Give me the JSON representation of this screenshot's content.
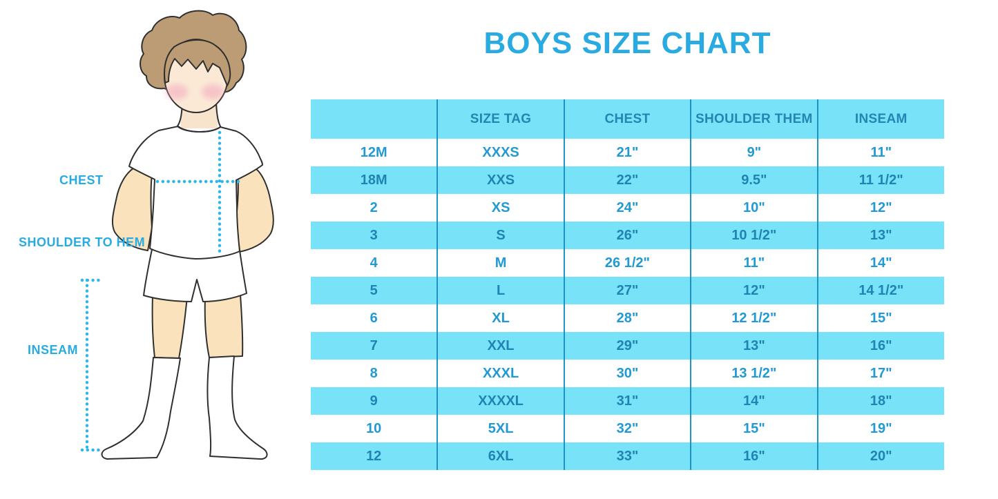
{
  "title": "BOYS SIZE CHART",
  "figure": {
    "labels": {
      "chest": "CHEST",
      "shoulder_to_hem": "SHOULDER TO HEM",
      "inseam": "INSEAM"
    }
  },
  "colors": {
    "title_blue": "#29ABE2",
    "header_bg": "#78E2F8",
    "alt_row_bg": "#78E2F8",
    "grid_line": "#1E94C6",
    "text_on_white": "#2199D3",
    "text_on_blue": "#1F84B2",
    "dotted_line": "#2EB6EC",
    "hair": "#BC9C74",
    "skin": "#FAE3BC"
  },
  "chart_data": {
    "type": "table",
    "title": "BOYS SIZE CHART",
    "columns": [
      "",
      "SIZE TAG",
      "CHEST",
      "SHOULDER THEM",
      "INSEAM"
    ],
    "rows": [
      [
        "12M",
        "XXXS",
        "21\"",
        "9\"",
        "11\""
      ],
      [
        "18M",
        "XXS",
        "22\"",
        "9.5\"",
        "11 1/2\""
      ],
      [
        "2",
        "XS",
        "24\"",
        "10\"",
        "12\""
      ],
      [
        "3",
        "S",
        "26\"",
        "10 1/2\"",
        "13\""
      ],
      [
        "4",
        "M",
        "26 1/2\"",
        "11\"",
        "14\""
      ],
      [
        "5",
        "L",
        "27\"",
        "12\"",
        "14 1/2\""
      ],
      [
        "6",
        "XL",
        "28\"",
        "12 1/2\"",
        "15\""
      ],
      [
        "7",
        "XXL",
        "29\"",
        "13\"",
        "16\""
      ],
      [
        "8",
        "XXXL",
        "30\"",
        "13 1/2\"",
        "17\""
      ],
      [
        "9",
        "XXXXL",
        "31\"",
        "14\"",
        "18\""
      ],
      [
        "10",
        "5XL",
        "32\"",
        "15\"",
        "19\""
      ],
      [
        "12",
        "6XL",
        "33\"",
        "16\"",
        "20\""
      ]
    ]
  }
}
